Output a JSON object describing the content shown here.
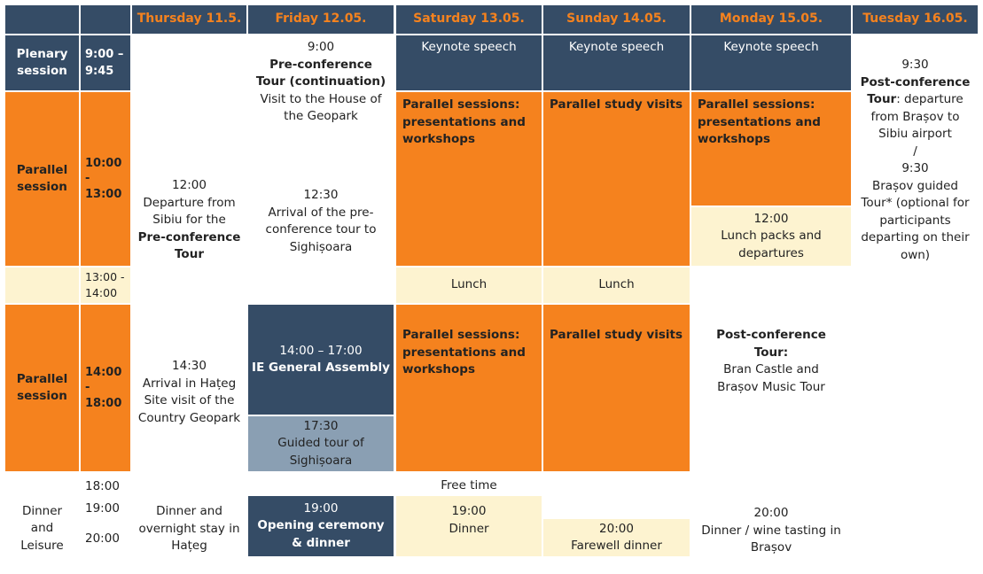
{
  "header": {
    "days": [
      "Thursday 11.5.",
      "Friday 12.05.",
      "Saturday 13.05.",
      "Sunday 14.05.",
      "Monday 15.05.",
      "Tuesday 16.05."
    ]
  },
  "rows": {
    "plenary": {
      "label": [
        "Plenary",
        "session"
      ],
      "time": [
        "9:00 –",
        "9:45"
      ]
    },
    "parallel1": {
      "label": [
        "Parallel",
        "session"
      ],
      "time": [
        "10:00",
        "-",
        "13:00"
      ]
    },
    "lunch": {
      "time": [
        "13:00 -",
        "14:00"
      ]
    },
    "parallel2": {
      "label": [
        "Parallel",
        "session"
      ],
      "time": [
        "14:00",
        "-",
        "18:00"
      ]
    },
    "dinner": {
      "label": [
        "Dinner",
        "and",
        "Leisure"
      ],
      "times": [
        "18:00",
        "19:00",
        "20:00"
      ]
    }
  },
  "thursday": {
    "morning": [
      "12:00",
      "Departure from",
      "Sibiu for the"
    ],
    "morning_bold": [
      "Pre-conference",
      "Tour"
    ],
    "afternoon": [
      "14:30",
      "Arrival in Hațeg",
      "Site visit of the",
      "Country Geopark"
    ],
    "evening": [
      "Dinner and",
      "overnight stay in",
      "Hațeg"
    ]
  },
  "friday": {
    "morning_time": "9:00",
    "morning_bold": [
      "Pre-conference",
      "Tour (continuation)"
    ],
    "morning_text": [
      "Visit to the House of",
      "the Geopark"
    ],
    "midday": [
      "12:30",
      "Arrival of the pre-",
      "conference tour to",
      "Sighișoara"
    ],
    "assembly_time": "14:00 – 17:00",
    "assembly_title": "IE General Assembly",
    "guided": [
      "17:30",
      "Guided tour of",
      "Sighișoara"
    ],
    "opening_time": "19:00",
    "opening_title": [
      "Opening ceremony",
      "& dinner"
    ]
  },
  "saturday": {
    "keynote": "Keynote speech",
    "parallel": [
      "Parallel sessions:",
      "presentations and",
      "workshops"
    ],
    "lunch": "Lunch",
    "parallel2": [
      "Parallel sessions:",
      "presentations and",
      "workshops"
    ],
    "free_time": "Free time",
    "dinner": [
      "19:00",
      "Dinner"
    ]
  },
  "sunday": {
    "keynote": "Keynote speech",
    "visits": "Parallel study visits",
    "lunch": "Lunch",
    "visits2": "Parallel study visits",
    "farewell": [
      "20:00",
      "Farewell dinner"
    ]
  },
  "monday": {
    "keynote": "Keynote speech",
    "parallel": [
      "Parallel sessions:",
      "presentations and",
      "workshops"
    ],
    "lunch_packs": [
      "12:00",
      "Lunch packs and",
      "departures"
    ],
    "post_bold": [
      "Post-conference",
      "Tour:"
    ],
    "post_text": [
      "Bran Castle and",
      "Brașov Music Tour"
    ],
    "dinner": [
      "20:00",
      "Dinner / wine tasting in",
      "Brașov"
    ]
  },
  "tuesday": {
    "time1": "9:30",
    "post_bold": "Post-conference",
    "post_bold2": "Tour",
    "post_rest": ": departure",
    "post_lines": [
      "from Brașov to",
      "Sibiu airport",
      "/",
      "9:30",
      "Brașov guided",
      "Tour* (optional for",
      "participants",
      "departing on their",
      "own)"
    ]
  }
}
